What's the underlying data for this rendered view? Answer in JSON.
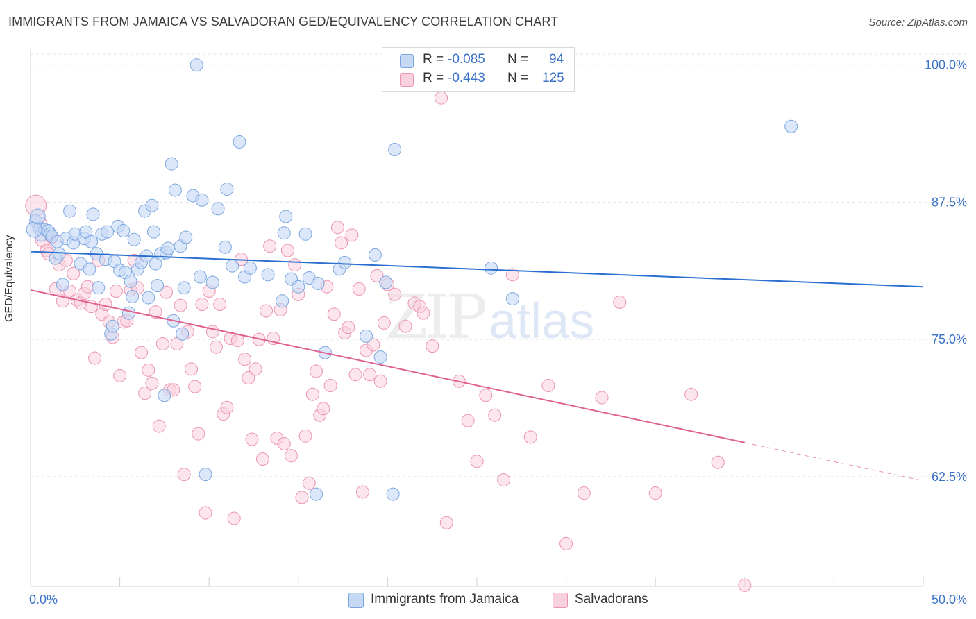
{
  "title": "IMMIGRANTS FROM JAMAICA VS SALVADORAN GED/EQUIVALENCY CORRELATION CHART",
  "source": "Source: ZipAtlas.com",
  "watermark": {
    "zip": "ZIP",
    "atlas": "atlas"
  },
  "legend": {
    "rows": [
      {
        "r_label": "R =",
        "r_value": "-0.085",
        "n_label": "N =",
        "n_value": "94"
      },
      {
        "r_label": "R =",
        "r_value": "-0.443",
        "n_label": "N =",
        "n_value": "125"
      }
    ]
  },
  "colors": {
    "jamaica_fill": "#c5d9f5",
    "jamaica_stroke": "#7aa5e0",
    "jamaica_line": "#2a6fcf",
    "salv_fill": "#f9d0dd",
    "salv_stroke": "#eb93b2",
    "salv_line": "#e0608f",
    "axis_text": "#3a72c8",
    "grid": "#e3e3e3"
  },
  "chart_data": {
    "type": "scatter",
    "title": "IMMIGRANTS FROM JAMAICA VS SALVADORAN GED/EQUIVALENCY CORRELATION CHART",
    "xlabel": "",
    "ylabel": "GED/Equivalency",
    "xlim": [
      0,
      50
    ],
    "ylim": [
      52.5,
      101.5
    ],
    "x_tick_labels": [
      "0.0%",
      "50.0%"
    ],
    "y_ticks": [
      62.5,
      75.0,
      87.5,
      100.0
    ],
    "y_tick_labels": [
      "62.5%",
      "75.0%",
      "87.5%",
      "100.0%"
    ],
    "grid": true,
    "legend_position": "bottom",
    "series": [
      {
        "name": "Immigrants from Jamaica",
        "r": -0.085,
        "n": 94,
        "trend": {
          "x": [
            0,
            50
          ],
          "y": [
            83.0,
            79.8
          ]
        },
        "points": [
          [
            0.3,
            85.8
          ],
          [
            0.5,
            85.1
          ],
          [
            0.6,
            84.5
          ],
          [
            0.8,
            85.0
          ],
          [
            1.0,
            84.9
          ],
          [
            1.1,
            84.6
          ],
          [
            1.2,
            84.4
          ],
          [
            1.4,
            82.4
          ],
          [
            1.5,
            83.9
          ],
          [
            1.6,
            82.8
          ],
          [
            1.8,
            80.0
          ],
          [
            2.0,
            84.2
          ],
          [
            2.2,
            86.7
          ],
          [
            2.4,
            83.8
          ],
          [
            2.5,
            84.6
          ],
          [
            2.8,
            81.9
          ],
          [
            3.0,
            84.2
          ],
          [
            3.1,
            84.8
          ],
          [
            3.3,
            81.4
          ],
          [
            3.4,
            83.9
          ],
          [
            3.5,
            86.4
          ],
          [
            3.7,
            82.8
          ],
          [
            3.8,
            79.7
          ],
          [
            4.0,
            84.6
          ],
          [
            4.2,
            82.3
          ],
          [
            4.3,
            84.8
          ],
          [
            4.5,
            75.5
          ],
          [
            4.6,
            76.2
          ],
          [
            4.7,
            82.1
          ],
          [
            4.9,
            85.3
          ],
          [
            5.0,
            81.3
          ],
          [
            5.2,
            84.9
          ],
          [
            5.3,
            81.1
          ],
          [
            5.5,
            77.4
          ],
          [
            5.6,
            80.3
          ],
          [
            5.7,
            78.9
          ],
          [
            5.8,
            84.1
          ],
          [
            6.0,
            81.4
          ],
          [
            6.2,
            82.0
          ],
          [
            6.4,
            86.7
          ],
          [
            6.5,
            82.6
          ],
          [
            6.6,
            78.8
          ],
          [
            6.8,
            87.2
          ],
          [
            6.9,
            84.8
          ],
          [
            7.0,
            81.9
          ],
          [
            7.1,
            79.9
          ],
          [
            7.3,
            82.8
          ],
          [
            7.5,
            69.9
          ],
          [
            7.6,
            82.9
          ],
          [
            7.7,
            83.3
          ],
          [
            7.9,
            91.0
          ],
          [
            8.0,
            76.7
          ],
          [
            8.1,
            88.6
          ],
          [
            8.4,
            83.5
          ],
          [
            8.5,
            75.5
          ],
          [
            8.6,
            79.7
          ],
          [
            8.7,
            84.3
          ],
          [
            9.1,
            88.1
          ],
          [
            9.3,
            100.0
          ],
          [
            9.5,
            80.7
          ],
          [
            9.6,
            87.7
          ],
          [
            9.8,
            62.7
          ],
          [
            10.2,
            80.2
          ],
          [
            10.5,
            86.9
          ],
          [
            10.9,
            83.4
          ],
          [
            11.0,
            88.7
          ],
          [
            11.3,
            81.7
          ],
          [
            11.7,
            93.0
          ],
          [
            12.0,
            80.7
          ],
          [
            12.3,
            81.5
          ],
          [
            13.3,
            80.9
          ],
          [
            14.1,
            78.5
          ],
          [
            14.2,
            84.7
          ],
          [
            14.3,
            86.2
          ],
          [
            14.6,
            80.5
          ],
          [
            15.0,
            79.8
          ],
          [
            15.4,
            84.6
          ],
          [
            15.6,
            80.6
          ],
          [
            16.1,
            80.1
          ],
          [
            16.0,
            60.9
          ],
          [
            16.5,
            73.8
          ],
          [
            17.3,
            81.4
          ],
          [
            17.6,
            82.0
          ],
          [
            18.8,
            75.3
          ],
          [
            19.3,
            82.7
          ],
          [
            19.6,
            73.4
          ],
          [
            19.9,
            80.2
          ],
          [
            20.3,
            60.9
          ],
          [
            20.4,
            92.3
          ],
          [
            25.8,
            81.5
          ],
          [
            27.0,
            78.7
          ],
          [
            42.6,
            94.4
          ],
          [
            0.2,
            85.0
          ],
          [
            0.4,
            86.2
          ]
        ]
      },
      {
        "name": "Salvadorans",
        "r": -0.443,
        "n": 125,
        "trend": {
          "x": [
            0,
            40
          ],
          "y": [
            79.5,
            65.6
          ]
        },
        "points": [
          [
            0.3,
            87.2
          ],
          [
            0.5,
            85.5
          ],
          [
            0.7,
            84.1
          ],
          [
            0.9,
            83.1
          ],
          [
            1.0,
            82.8
          ],
          [
            1.2,
            84.3
          ],
          [
            1.4,
            79.6
          ],
          [
            1.6,
            81.8
          ],
          [
            1.8,
            78.5
          ],
          [
            2.0,
            82.2
          ],
          [
            2.2,
            79.4
          ],
          [
            2.4,
            81.0
          ],
          [
            2.6,
            78.6
          ],
          [
            2.8,
            78.3
          ],
          [
            3.0,
            79.2
          ],
          [
            3.2,
            79.8
          ],
          [
            3.4,
            78.0
          ],
          [
            3.6,
            73.3
          ],
          [
            3.8,
            82.2
          ],
          [
            4.0,
            77.3
          ],
          [
            4.2,
            78.2
          ],
          [
            4.4,
            76.6
          ],
          [
            4.6,
            75.2
          ],
          [
            4.8,
            79.4
          ],
          [
            5.0,
            71.7
          ],
          [
            5.2,
            76.6
          ],
          [
            5.4,
            76.7
          ],
          [
            5.6,
            79.5
          ],
          [
            5.8,
            82.2
          ],
          [
            6.0,
            79.7
          ],
          [
            6.2,
            73.8
          ],
          [
            6.4,
            70.1
          ],
          [
            6.6,
            72.2
          ],
          [
            6.8,
            71.0
          ],
          [
            7.0,
            77.5
          ],
          [
            7.2,
            67.1
          ],
          [
            7.4,
            74.6
          ],
          [
            7.6,
            79.3
          ],
          [
            7.8,
            70.4
          ],
          [
            8.0,
            70.4
          ],
          [
            8.2,
            74.6
          ],
          [
            8.4,
            78.1
          ],
          [
            8.6,
            62.7
          ],
          [
            8.8,
            75.7
          ],
          [
            9.0,
            72.3
          ],
          [
            9.2,
            70.7
          ],
          [
            9.4,
            66.4
          ],
          [
            9.6,
            78.2
          ],
          [
            9.8,
            59.2
          ],
          [
            10.0,
            79.4
          ],
          [
            10.2,
            75.7
          ],
          [
            10.4,
            74.3
          ],
          [
            10.6,
            78.2
          ],
          [
            10.8,
            68.2
          ],
          [
            11.0,
            68.8
          ],
          [
            11.2,
            75.1
          ],
          [
            11.4,
            58.7
          ],
          [
            11.6,
            74.9
          ],
          [
            11.8,
            82.3
          ],
          [
            12.0,
            73.2
          ],
          [
            12.2,
            71.5
          ],
          [
            12.4,
            65.9
          ],
          [
            12.6,
            72.3
          ],
          [
            12.8,
            75.0
          ],
          [
            13.0,
            64.1
          ],
          [
            13.2,
            77.6
          ],
          [
            13.4,
            83.5
          ],
          [
            13.6,
            75.1
          ],
          [
            13.8,
            66.0
          ],
          [
            14.0,
            77.7
          ],
          [
            14.2,
            65.5
          ],
          [
            14.4,
            83.1
          ],
          [
            14.6,
            64.4
          ],
          [
            14.8,
            81.8
          ],
          [
            15.0,
            79.1
          ],
          [
            15.2,
            60.6
          ],
          [
            15.4,
            66.2
          ],
          [
            15.6,
            61.9
          ],
          [
            15.8,
            70.0
          ],
          [
            16.0,
            72.1
          ],
          [
            16.2,
            68.1
          ],
          [
            16.4,
            68.7
          ],
          [
            16.6,
            79.8
          ],
          [
            16.8,
            70.8
          ],
          [
            17.0,
            77.3
          ],
          [
            17.2,
            85.2
          ],
          [
            17.4,
            83.8
          ],
          [
            17.6,
            75.6
          ],
          [
            17.8,
            76.1
          ],
          [
            18.0,
            84.5
          ],
          [
            18.2,
            71.8
          ],
          [
            18.4,
            79.6
          ],
          [
            18.6,
            61.1
          ],
          [
            18.8,
            74.0
          ],
          [
            19.0,
            71.8
          ],
          [
            19.2,
            74.5
          ],
          [
            19.4,
            80.8
          ],
          [
            19.6,
            71.2
          ],
          [
            19.8,
            76.5
          ],
          [
            20.0,
            80.0
          ],
          [
            20.4,
            79.1
          ],
          [
            21.0,
            76.2
          ],
          [
            21.5,
            78.3
          ],
          [
            21.8,
            78.0
          ],
          [
            22.0,
            77.4
          ],
          [
            22.5,
            74.4
          ],
          [
            23.0,
            97.0
          ],
          [
            23.3,
            58.3
          ],
          [
            24.0,
            71.2
          ],
          [
            24.5,
            67.6
          ],
          [
            25.0,
            63.9
          ],
          [
            25.5,
            69.9
          ],
          [
            26.0,
            68.1
          ],
          [
            26.5,
            62.2
          ],
          [
            27.0,
            80.9
          ],
          [
            28.0,
            66.1
          ],
          [
            29.0,
            70.8
          ],
          [
            30.0,
            56.4
          ],
          [
            31.0,
            61.0
          ],
          [
            32.0,
            69.7
          ],
          [
            33.0,
            78.4
          ],
          [
            35.0,
            61.0
          ],
          [
            37.0,
            70.0
          ],
          [
            38.5,
            63.8
          ],
          [
            40.0,
            52.6
          ]
        ]
      }
    ]
  }
}
